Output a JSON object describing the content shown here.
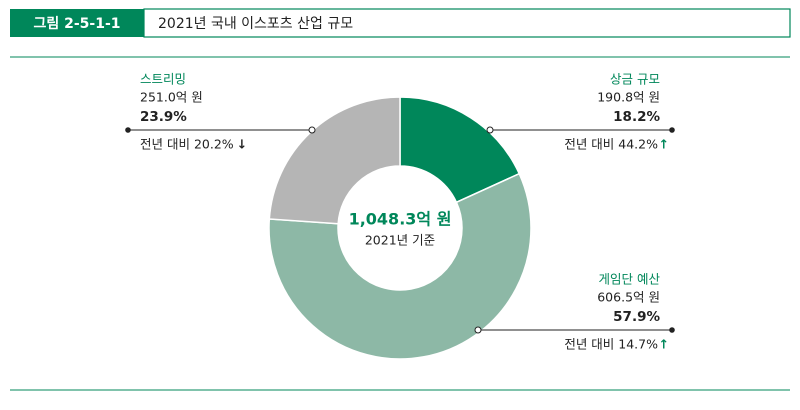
{
  "figure_label": "그림 2-5-1-1",
  "chart_data": {
    "type": "pie",
    "donut": true,
    "title": "2021년 국내 이스포츠 산업 규모",
    "center_label": "1,048.3억 원",
    "center_sublabel": "2021년 기준",
    "categories": [
      "상금 규모",
      "게임단 예산",
      "스트리밍"
    ],
    "values": [
      18.2,
      57.9,
      23.9
    ],
    "value_labels": [
      "18.2%",
      "57.9%",
      "23.9%"
    ],
    "amount_labels": [
      "190.8억 원",
      "606.5억 원",
      "251.0억 원"
    ],
    "change_labels": [
      "전년 대비 44.2%",
      "전년 대비 14.7%",
      "전년 대비 20.2%"
    ],
    "change_arrows": [
      "↑",
      "↑",
      "↓"
    ],
    "colors": [
      "#00875a",
      "#8db8a6",
      "#b5b5b5"
    ]
  }
}
